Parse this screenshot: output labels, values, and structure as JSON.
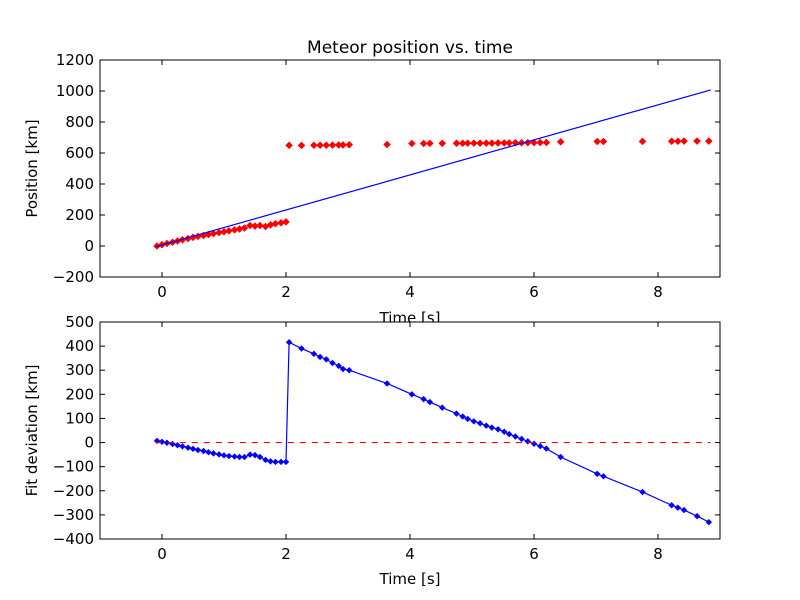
{
  "chart_data": [
    {
      "type": "scatter",
      "title": "Meteor position vs. time",
      "xlabel": "Time [s]",
      "ylabel": "Position [km]",
      "xlim": [
        -1,
        9
      ],
      "ylim": [
        -200,
        1200
      ],
      "xticks": [
        0,
        2,
        4,
        6,
        8
      ],
      "xtick_labels": [
        "0",
        "2",
        "4",
        "6",
        "8"
      ],
      "yticks": [
        -200,
        0,
        200,
        400,
        600,
        800,
        1000,
        1200
      ],
      "ytick_labels": [
        "−200",
        "0",
        "200",
        "400",
        "600",
        "800",
        "1000",
        "1200"
      ],
      "grid": false,
      "legend": "none",
      "colors": {
        "observed": "#ff0000",
        "fit": "#0000ff"
      },
      "series": [
        {
          "kind": "points",
          "x": [
            -0.08,
            0.0,
            0.08,
            0.17,
            0.25,
            0.33,
            0.42,
            0.5,
            0.58,
            0.67,
            0.75,
            0.83,
            0.92,
            1.0,
            1.08,
            1.17,
            1.25,
            1.33,
            1.42,
            1.5,
            1.58,
            1.67,
            1.75,
            1.83,
            1.92,
            2.0,
            2.05,
            2.25,
            2.45,
            2.55,
            2.65,
            2.75,
            2.85,
            2.92,
            3.02,
            3.63,
            4.03,
            4.22,
            4.32,
            4.52,
            4.75,
            4.85,
            4.93,
            5.03,
            5.13,
            5.23,
            5.32,
            5.42,
            5.52,
            5.6,
            5.7,
            5.8,
            5.9,
            6.0,
            6.1,
            6.2,
            6.43,
            7.02,
            7.12,
            7.75,
            8.22,
            8.32,
            8.42,
            8.63,
            8.82
          ],
          "y": [
            0,
            8,
            16,
            24,
            32,
            40,
            48,
            56,
            62,
            68,
            74,
            80,
            86,
            92,
            98,
            104,
            110,
            116,
            132,
            128,
            132,
            126,
            136,
            144,
            150,
            156,
            649,
            649,
            650,
            650,
            650,
            651,
            652,
            652,
            653,
            655,
            661,
            661,
            662,
            662,
            663,
            663,
            664,
            664,
            664,
            664,
            664,
            665,
            665,
            665,
            666,
            666,
            667,
            667,
            668,
            668,
            672,
            674,
            674,
            675,
            676,
            676,
            677,
            677,
            677
          ]
        },
        {
          "kind": "line",
          "x": [
            -0.1,
            8.85
          ],
          "y": [
            -5,
            1007
          ]
        }
      ]
    },
    {
      "type": "line",
      "title": "",
      "xlabel": "Time [s]",
      "ylabel": "Fit deviation [km]",
      "xlim": [
        -1,
        9
      ],
      "ylim": [
        -400,
        500
      ],
      "xticks": [
        0,
        2,
        4,
        6,
        8
      ],
      "xtick_labels": [
        "0",
        "2",
        "4",
        "6",
        "8"
      ],
      "yticks": [
        -400,
        -300,
        -200,
        -100,
        0,
        100,
        200,
        300,
        400,
        500
      ],
      "ytick_labels": [
        "−400",
        "−300",
        "−200",
        "−100",
        "0",
        "100",
        "200",
        "300",
        "400",
        "500"
      ],
      "grid": false,
      "legend": "none",
      "colors": {
        "deviation": "#0000ff",
        "zero": "#ff0000"
      },
      "series": [
        {
          "kind": "line-points",
          "x": [
            -0.08,
            0.0,
            0.08,
            0.17,
            0.25,
            0.33,
            0.42,
            0.5,
            0.58,
            0.67,
            0.75,
            0.83,
            0.92,
            1.0,
            1.08,
            1.17,
            1.25,
            1.33,
            1.42,
            1.5,
            1.58,
            1.67,
            1.75,
            1.83,
            1.92,
            2.0,
            2.05,
            2.25,
            2.45,
            2.55,
            2.65,
            2.75,
            2.85,
            2.92,
            3.02,
            3.63,
            4.03,
            4.22,
            4.32,
            4.52,
            4.75,
            4.85,
            4.93,
            5.03,
            5.13,
            5.23,
            5.32,
            5.42,
            5.52,
            5.6,
            5.7,
            5.8,
            5.9,
            6.0,
            6.1,
            6.2,
            6.43,
            7.02,
            7.12,
            7.75,
            8.22,
            8.32,
            8.42,
            8.63,
            8.82
          ],
          "y": [
            7,
            3,
            -1,
            -6,
            -11,
            -16,
            -21,
            -26,
            -31,
            -35,
            -40,
            -45,
            -49,
            -53,
            -56,
            -58,
            -60,
            -60,
            -50,
            -52,
            -60,
            -72,
            -78,
            -80,
            -80,
            -80,
            416,
            390,
            368,
            355,
            345,
            330,
            318,
            305,
            300,
            245,
            200,
            180,
            168,
            145,
            120,
            108,
            98,
            88,
            80,
            70,
            62,
            55,
            45,
            35,
            25,
            15,
            5,
            -5,
            -15,
            -25,
            -60,
            -130,
            -140,
            -205,
            -260,
            -270,
            -280,
            -305,
            -330
          ]
        },
        {
          "kind": "dashed-line",
          "x": [
            -0.1,
            8.85
          ],
          "y": [
            0,
            0
          ]
        }
      ]
    }
  ]
}
